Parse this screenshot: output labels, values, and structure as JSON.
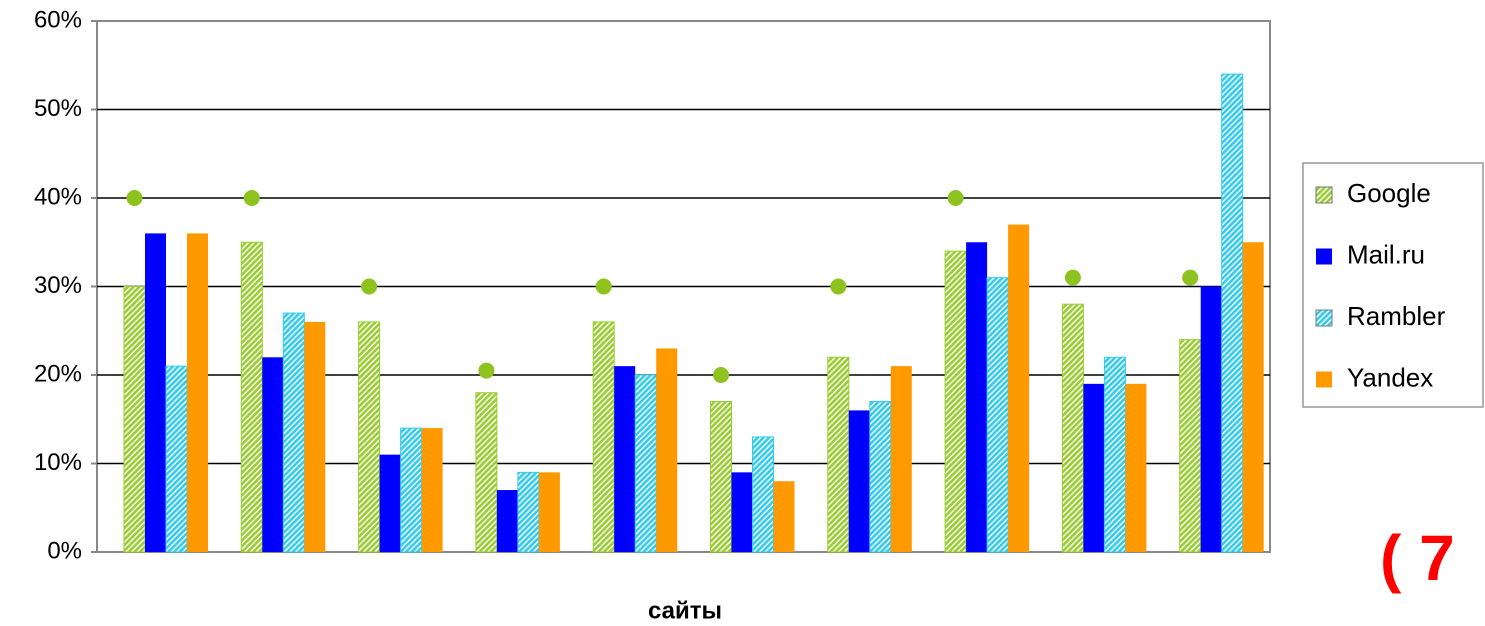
{
  "chart_data": {
    "type": "bar",
    "x_label": "сайты",
    "annotation": "( 7",
    "categories": [
      null,
      null,
      null,
      null,
      null,
      null,
      null,
      null,
      null,
      null
    ],
    "series": [
      {
        "name": "Google",
        "color": "#9acd32",
        "pattern": "hatch",
        "values": [
          30,
          35,
          26,
          18,
          26,
          17,
          22,
          34,
          28,
          24
        ]
      },
      {
        "name": "Mail.ru",
        "color": "#0000ff",
        "values": [
          36,
          22,
          11,
          7,
          21,
          9,
          16,
          35,
          19,
          30
        ]
      },
      {
        "name": "Rambler",
        "color": "#33ccee",
        "pattern": "hatch",
        "values": [
          21,
          27,
          14,
          9,
          20,
          13,
          17,
          31,
          22,
          54
        ]
      },
      {
        "name": "Yandex",
        "color": "#ff9900",
        "values": [
          36,
          26,
          14,
          9,
          23,
          8,
          21,
          37,
          19,
          35
        ]
      },
      {
        "color": "#8dc21f",
        "style": "dot",
        "values": [
          40,
          40,
          30,
          20.5,
          30,
          20,
          30,
          40,
          31,
          31
        ]
      }
    ],
    "ylim": [
      0,
      60
    ],
    "yticks": [
      {
        "value": 0,
        "label": "0%"
      },
      {
        "value": 10,
        "label": "10%"
      },
      {
        "value": 20,
        "label": "20%"
      },
      {
        "value": 30,
        "label": "30%"
      },
      {
        "value": 40,
        "label": "40%"
      },
      {
        "value": 50,
        "label": "50%"
      },
      {
        "value": 60,
        "label": "60%"
      }
    ],
    "grid": true,
    "legend": "right"
  }
}
